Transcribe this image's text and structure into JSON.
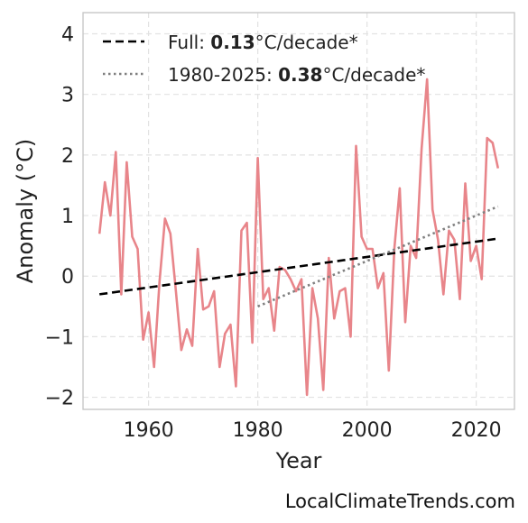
{
  "chart_data": {
    "type": "line",
    "xlabel": "Year",
    "ylabel": "Anomaly (°C)",
    "xlim": [
      1948,
      2027
    ],
    "ylim": [
      -2.2,
      4.35
    ],
    "xticks": [
      1960,
      1980,
      2000,
      2020
    ],
    "yticks": [
      -2,
      -1,
      0,
      1,
      2,
      3,
      4
    ],
    "ytick_labels": [
      "−2",
      "−1",
      "0",
      "1",
      "2",
      "3",
      "4"
    ],
    "grid": true,
    "legend_position": "top-left",
    "series": [
      {
        "kind": "anomaly",
        "color": "#e8858a",
        "x": [
          1951,
          1952,
          1953,
          1954,
          1955,
          1956,
          1957,
          1958,
          1959,
          1960,
          1961,
          1962,
          1963,
          1964,
          1965,
          1966,
          1967,
          1968,
          1969,
          1970,
          1971,
          1972,
          1973,
          1974,
          1975,
          1976,
          1977,
          1978,
          1979,
          1980,
          1981,
          1982,
          1983,
          1984,
          1985,
          1986,
          1987,
          1988,
          1989,
          1990,
          1991,
          1992,
          1993,
          1994,
          1995,
          1996,
          1997,
          1998,
          1999,
          2000,
          2001,
          2002,
          2003,
          2004,
          2005,
          2006,
          2007,
          2008,
          2009,
          2010,
          2011,
          2012,
          2013,
          2014,
          2015,
          2016,
          2017,
          2018,
          2019,
          2020,
          2021,
          2022,
          2023,
          2024
        ],
        "y": [
          0.7,
          1.55,
          1.0,
          2.05,
          -0.3,
          1.88,
          0.65,
          0.45,
          -1.05,
          -0.6,
          -1.5,
          -0.1,
          0.95,
          0.7,
          -0.25,
          -1.22,
          -0.88,
          -1.15,
          0.45,
          -0.55,
          -0.5,
          -0.25,
          -1.5,
          -0.95,
          -0.8,
          -1.82,
          0.75,
          0.88,
          -1.1,
          1.95,
          -0.38,
          -0.2,
          -0.9,
          0.15,
          0.1,
          -0.05,
          -0.25,
          -0.05,
          -1.96,
          -0.2,
          -0.7,
          -1.88,
          0.3,
          -0.7,
          -0.25,
          -0.2,
          -1.0,
          2.15,
          0.65,
          0.45,
          0.45,
          -0.2,
          0.05,
          -1.56,
          0.45,
          1.45,
          -0.76,
          0.5,
          0.3,
          2.1,
          3.25,
          1.1,
          0.6,
          -0.3,
          0.75,
          0.6,
          -0.38,
          1.53,
          0.25,
          0.5,
          -0.05,
          2.28,
          2.2,
          1.78
        ]
      },
      {
        "kind": "trend-full",
        "color": "#000000",
        "style": "dashed",
        "x": [
          1951,
          2024
        ],
        "y": [
          -0.3,
          0.62
        ]
      },
      {
        "kind": "trend-recent",
        "color": "#808080",
        "style": "dotted",
        "x": [
          1980,
          2024
        ],
        "y": [
          -0.5,
          1.15
        ]
      }
    ],
    "legend": [
      {
        "style": "dashed",
        "color": "#000000",
        "prefix": "Full: ",
        "value": "0.13",
        "suffix": "°C/decade*"
      },
      {
        "style": "dotted",
        "color": "#808080",
        "prefix": "1980-2025: ",
        "value": "0.38",
        "suffix": "°C/decade*"
      }
    ]
  },
  "watermark": "LocalClimateTrends.com"
}
